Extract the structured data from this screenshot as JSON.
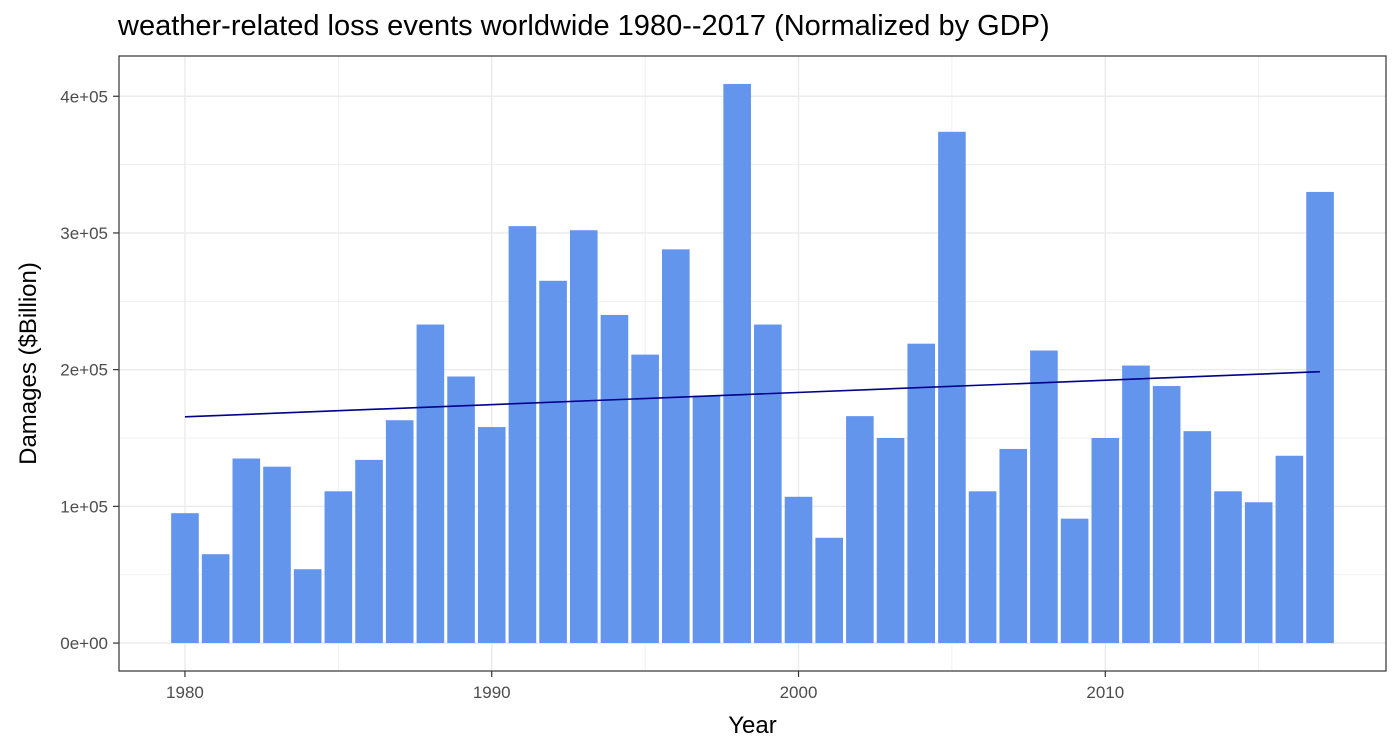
{
  "chart_data": {
    "type": "bar",
    "title": "weather-related loss events worldwide 1980--2017 (Normalized by GDP)",
    "xlabel": "Year",
    "ylabel": "Damages ($Billion)",
    "x": [
      1980,
      1981,
      1982,
      1983,
      1984,
      1985,
      1986,
      1987,
      1988,
      1989,
      1990,
      1991,
      1992,
      1993,
      1994,
      1995,
      1996,
      1997,
      1998,
      1999,
      2000,
      2001,
      2002,
      2003,
      2004,
      2005,
      2006,
      2007,
      2008,
      2009,
      2010,
      2011,
      2012,
      2013,
      2014,
      2015,
      2016,
      2017
    ],
    "values": [
      95000,
      65000,
      135000,
      129000,
      54000,
      111000,
      134000,
      163000,
      233000,
      195000,
      158000,
      305000,
      265000,
      302000,
      240000,
      211000,
      288000,
      181000,
      409000,
      233000,
      107000,
      77000,
      166000,
      150000,
      219000,
      374000,
      111000,
      142000,
      214000,
      91000,
      150000,
      203000,
      188000,
      155000,
      111000,
      103000,
      137000,
      330000
    ],
    "trend": {
      "name": "linear trend",
      "start": [
        1980,
        165500
      ],
      "end": [
        2017,
        198500
      ]
    },
    "xticks": [
      {
        "value": 1980,
        "label": "1980"
      },
      {
        "value": 1990,
        "label": "1990"
      },
      {
        "value": 2000,
        "label": "2000"
      },
      {
        "value": 2010,
        "label": "2010"
      }
    ],
    "yticks": [
      {
        "value": 0,
        "label": "0e+00"
      },
      {
        "value": 100000,
        "label": "1e+05"
      },
      {
        "value": 200000,
        "label": "2e+05"
      },
      {
        "value": 300000,
        "label": "3e+05"
      },
      {
        "value": 400000,
        "label": "4e+05"
      }
    ],
    "xlim": [
      1977.85,
      2019.15
    ],
    "ylim": [
      -20450,
      429450
    ],
    "grid": true,
    "legend": "none",
    "colors": {
      "bar": "#6495ED",
      "trend": "#00008B",
      "grid": "#ebebeb",
      "panel_border": "#333333"
    }
  }
}
